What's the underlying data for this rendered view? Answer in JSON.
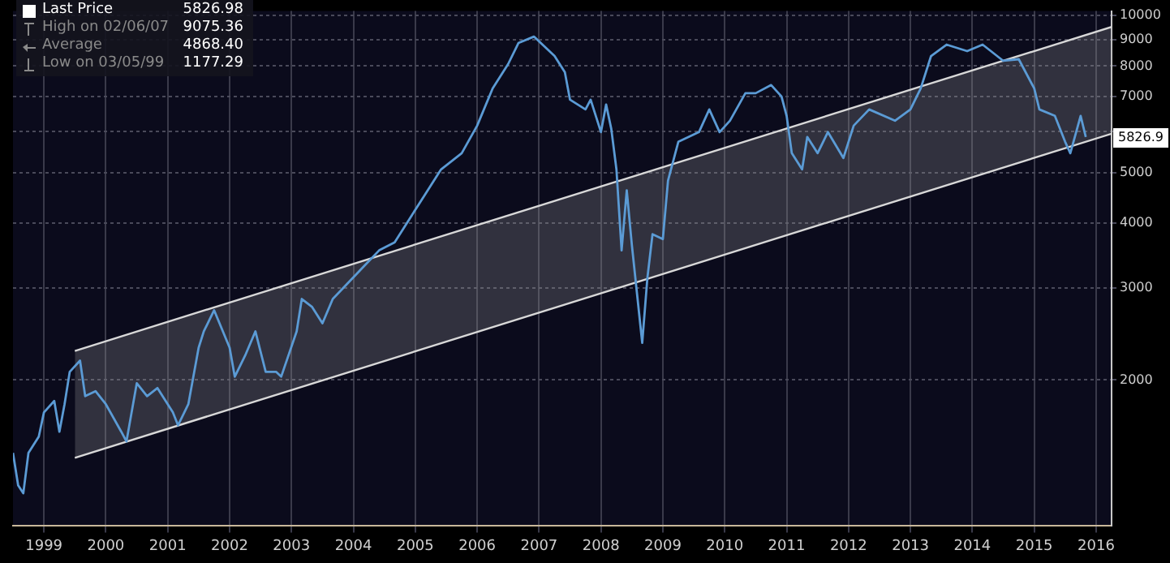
{
  "chart_data": {
    "type": "line",
    "legend": "top left",
    "log": true,
    "grid": true,
    "marker": "none",
    "line_style": "solid",
    "xlim": [
      "1999-01",
      "2016-10"
    ],
    "xticks": [
      {
        "value": "1999-07",
        "label": "1999"
      },
      {
        "value": "2000-07",
        "label": "2000"
      },
      {
        "value": "2001-07",
        "label": "2001"
      },
      {
        "value": "2002-07",
        "label": "2002"
      },
      {
        "value": "2003-07",
        "label": "2003"
      },
      {
        "value": "2004-07",
        "label": "2004"
      },
      {
        "value": "2005-07",
        "label": "2005"
      },
      {
        "value": "2006-07",
        "label": "2006"
      },
      {
        "value": "2007-07",
        "label": "2007"
      },
      {
        "value": "2008-07",
        "label": "2008"
      },
      {
        "value": "2009-07",
        "label": "2009"
      },
      {
        "value": "2010-07",
        "label": "2010"
      },
      {
        "value": "2011-07",
        "label": "2011"
      },
      {
        "value": "2012-07",
        "label": "2012"
      },
      {
        "value": "2013-07",
        "label": "2013"
      },
      {
        "value": "2014-07",
        "label": "2014"
      },
      {
        "value": "2015-07",
        "label": "2015"
      },
      {
        "value": "2016-07",
        "label": "2016"
      }
    ],
    "ylim": [
      1050,
      10200
    ],
    "yticks": [
      2000,
      3000,
      4000,
      5000,
      {
        "value": 6000,
        "label": null
      },
      7000,
      8000,
      9000,
      10000
    ],
    "annotations": [
      "5826.98",
      "High on 02/06/07",
      "9075.36",
      "Average",
      "4868.40",
      "Low on 03/05/99",
      "1177.29",
      {
        "text": "5826.9",
        "y": 5826.98
      }
    ],
    "series": [
      {
        "name": "Last Price",
        "color": "#5b9bd5",
        "x": [
          "1999-01",
          "1999-02",
          "1999-03",
          "1999-04",
          "1999-06",
          "1999-07",
          "1999-09",
          "1999-10",
          "1999-11",
          "1999-12",
          "2000-02",
          "2000-03",
          "2000-05",
          "2000-07",
          "2000-10",
          "2000-11",
          "2001-01",
          "2001-03",
          "2001-05",
          "2001-08",
          "2001-09",
          "2001-11",
          "2002-01",
          "2002-02",
          "2002-04",
          "2002-07",
          "2002-08",
          "2002-10",
          "2002-12",
          "2003-02",
          "2003-04",
          "2003-05",
          "2003-08",
          "2003-09",
          "2003-11",
          "2004-01",
          "2004-03",
          "2004-06",
          "2004-09",
          "2004-12",
          "2005-03",
          "2005-06",
          "2005-09",
          "2005-12",
          "2006-04",
          "2006-07",
          "2006-10",
          "2007-01",
          "2007-03",
          "2007-06",
          "2007-10",
          "2007-12",
          "2008-01",
          "2008-04",
          "2008-05",
          "2008-07",
          "2008-08",
          "2008-09",
          "2008-10",
          "2008-11",
          "2008-12",
          "2009-01",
          "2009-03",
          "2009-04",
          "2009-05",
          "2009-07",
          "2009-08",
          "2009-10",
          "2010-02",
          "2010-04",
          "2010-06",
          "2010-08",
          "2010-11",
          "2011-01",
          "2011-04",
          "2011-06",
          "2011-07",
          "2011-08",
          "2011-10",
          "2011-11",
          "2012-01",
          "2012-03",
          "2012-06",
          "2012-08",
          "2012-11",
          "2013-04",
          "2013-07",
          "2013-09",
          "2013-11",
          "2014-02",
          "2014-06",
          "2014-09",
          "2015-01",
          "2015-04",
          "2015-07",
          "2015-08",
          "2015-11",
          "2016-01",
          "2016-02",
          "2016-04",
          "2016-05"
        ],
        "values": [
          1450,
          1257,
          1213,
          1450,
          1558,
          1734,
          1824,
          1592,
          1798,
          2074,
          2180,
          1863,
          1904,
          1798,
          1592,
          1525,
          1972,
          1863,
          1931,
          1734,
          1638,
          1798,
          2308,
          2480,
          2722,
          2308,
          2030,
          2227,
          2480,
          2074,
          2074,
          2030,
          2480,
          2861,
          2761,
          2570,
          2861,
          3073,
          3301,
          3546,
          3674,
          4091,
          4555,
          5070,
          5445,
          6150,
          7250,
          8070,
          8857,
          9112,
          8364,
          7786,
          6896,
          6607,
          6896,
          5977,
          6750,
          6063,
          5070,
          3546,
          4620,
          3622,
          2358,
          3140,
          3808,
          3727,
          4823,
          5726,
          5977,
          6607,
          5977,
          6284,
          7097,
          7097,
          7356,
          6995,
          6421,
          5445,
          5070,
          5850,
          5445,
          5977,
          5330,
          6150,
          6607,
          6284,
          6607,
          7250,
          8364,
          8794,
          8545,
          8794,
          8187,
          8245,
          7250,
          6607,
          6421,
          5726,
          5445,
          6421,
          5850
        ]
      },
      {
        "color": "#d8d8d8",
        "x": [
          "2000-01",
          "2016-10"
        ],
        "values": [
          2275,
          9511
        ]
      },
      {
        "color": "#d8d8d8",
        "x": [
          "2000-01",
          "2016-10"
        ],
        "values": [
          1419,
          5935
        ]
      }
    ]
  }
}
